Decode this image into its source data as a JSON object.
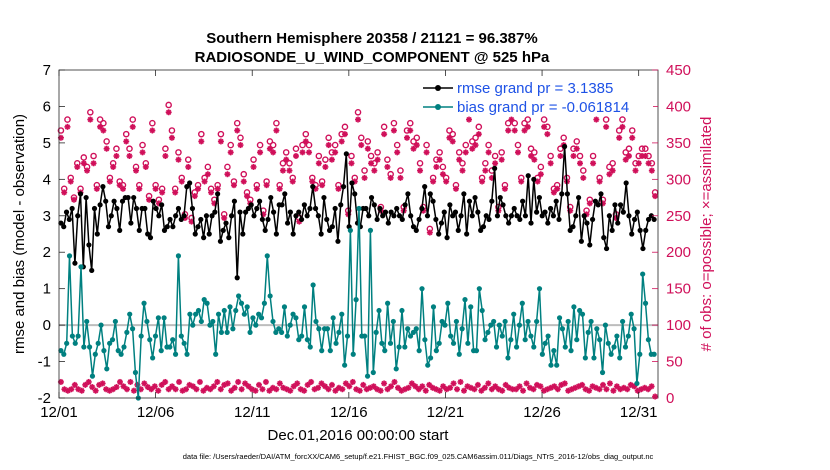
{
  "chart_data": {
    "type": "line",
    "title": "Southern Hemisphere 20358 / 21121 = 96.387%",
    "subtitle": "RADIOSONDE_U_WIND_COMPONENT @ 525 hPa",
    "xlabel": "Dec.01,2016 00:00:00 start",
    "ylabel_left": "rmse and bias (model - observation)",
    "ylabel_right": "# of obs: o=possible; ×=assimilated",
    "footnote": "data file: /Users/raeder/DAI/ATM_forcXX/CAM6_setup/f.e21.FHIST_BGC.f09_025.CAM6assim.011/Diags_NTrS_2016-12/obs_diag_output.nc",
    "x_ticks": [
      "12/01",
      "12/06",
      "12/11",
      "12/16",
      "12/21",
      "12/26",
      "12/31"
    ],
    "x_tick_days": [
      0,
      5,
      10,
      15,
      20,
      25,
      30
    ],
    "xlim": [
      0,
      31
    ],
    "y_left_ticks": [
      "-2",
      "-1",
      "0",
      "1",
      "2",
      "3",
      "4",
      "5",
      "6",
      "7"
    ],
    "ylim_left": [
      -2,
      7
    ],
    "y_right_ticks": [
      "0",
      "50",
      "100",
      "150",
      "200",
      "250",
      "300",
      "350",
      "400",
      "450"
    ],
    "ylim_right": [
      0,
      450
    ],
    "legend": {
      "location": "top-right",
      "rmse_label": "rmse grand pr = 3.1385",
      "bias_label": "bias grand pr = -0.061814"
    },
    "series": [
      {
        "name": "rmse",
        "color": "#000000",
        "axis": "left",
        "values": [
          2.8,
          2.7,
          3.1,
          2.9,
          3.2,
          1.7,
          3.0,
          3.6,
          1.6,
          3.5,
          2.2,
          1.5,
          3.2,
          2.5,
          3.3,
          3.8,
          3.4,
          2.7,
          3.0,
          3.4,
          3.2,
          2.6,
          3.4,
          3.5,
          3.5,
          2.8,
          3.5,
          3.2,
          2.6,
          3.2,
          3.2,
          2.5,
          2.4,
          3.4,
          3.2,
          3.0,
          3.3,
          2.6,
          2.7,
          2.9,
          2.7,
          3.0,
          3.2,
          2.9,
          3.0,
          3.8,
          3.9,
          3.2,
          2.5,
          2.7,
          2.9,
          2.4,
          3.0,
          2.5,
          3.0,
          3.1,
          3.6,
          2.3,
          2.6,
          2.8,
          2.4,
          3.0,
          3.4,
          1.3,
          3.1,
          2.5,
          3.1,
          3.2,
          3.3,
          3.0,
          3.2,
          3.4,
          2.9,
          2.6,
          2.9,
          3.5,
          3.1,
          2.5,
          3.3,
          3.3,
          3.6,
          2.8,
          3.1,
          2.5,
          3.0,
          3.1,
          2.9,
          3.3,
          3.0,
          3.2,
          3.8,
          3.2,
          3.0,
          2.5,
          3.5,
          2.9,
          2.6,
          2.7,
          3.2,
          2.3,
          3.3,
          3.8,
          4.7,
          2.7,
          3.9,
          3.6,
          2.8,
          2.7,
          3.2,
          3.2,
          3.0,
          3.5,
          3.3,
          2.9,
          3.2,
          3.0,
          3.1,
          2.8,
          3.1,
          3.0,
          3.2,
          3.0,
          2.9,
          3.3,
          3.6,
          3.0,
          2.7,
          2.6,
          2.9,
          3.2,
          3.8,
          3.0,
          3.6,
          3.4,
          2.9,
          2.5,
          2.8,
          3.1,
          2.4,
          3.3,
          3.0,
          3.1,
          2.6,
          3.0,
          3.6,
          2.5,
          3.4,
          3.0,
          3.5,
          3.1,
          2.6,
          2.7,
          3.0,
          2.9,
          3.4,
          4.3,
          3.0,
          3.5,
          3.3,
          3.0,
          2.8,
          3.0,
          3.2,
          3.0,
          2.9,
          3.4,
          3.0,
          4.1,
          2.8,
          4.0,
          3.1,
          3.5,
          3.0,
          3.1,
          2.8,
          3.2,
          3.0,
          3.4,
          2.9,
          3.6,
          4.9,
          3.6,
          2.6,
          2.7,
          3.0,
          3.5,
          2.3,
          3.0,
          2.8,
          2.2,
          2.9,
          3.4,
          3.3,
          3.6,
          2.4,
          2.1,
          3.0,
          2.6,
          3.3,
          2.8,
          3.3,
          3.1,
          3.9,
          3.0,
          2.5,
          2.9,
          3.1,
          2.6,
          2.1,
          2.6,
          2.9,
          3.0,
          2.9
        ]
      },
      {
        "name": "bias",
        "color": "#008080",
        "axis": "left",
        "values": [
          -0.7,
          -0.8,
          -0.5,
          1.9,
          -0.3,
          -0.5,
          -0.3,
          1.6,
          -0.6,
          0.1,
          -0.6,
          -1.4,
          -0.8,
          -0.5,
          0.0,
          -0.7,
          -1.2,
          -0.5,
          -0.4,
          0.1,
          -0.7,
          -0.8,
          -0.6,
          -0.2,
          0.3,
          -0.1,
          -1.3,
          -2.0,
          -0.3,
          0.6,
          0.1,
          -0.4,
          -0.9,
          -0.3,
          0.2,
          -0.7,
          0.2,
          -0.6,
          -0.6,
          -0.4,
          -0.8,
          1.9,
          -0.3,
          -0.5,
          -0.8,
          0.3,
          0.0,
          0.3,
          0.4,
          0.1,
          0.7,
          0.6,
          0.0,
          0.1,
          -0.8,
          0.3,
          -0.2,
          0.4,
          -0.2,
          0.5,
          -0.1,
          0.4,
          0.8,
          0.6,
          0.3,
          0.5,
          -0.2,
          0.2,
          0.0,
          0.3,
          0.2,
          0.6,
          1.9,
          0.8,
          0.1,
          -0.2,
          -0.1,
          -0.2,
          0.5,
          -0.3,
          0.0,
          0.3,
          0.2,
          -0.4,
          -0.3,
          0.5,
          -0.4,
          -0.6,
          1.1,
          0.1,
          -0.1,
          -0.7,
          -0.1,
          -0.1,
          -0.7,
          0.2,
          -0.5,
          -0.2,
          0.3,
          -1.1,
          -0.3,
          2.6,
          -0.8,
          0.7,
          3.2,
          -0.3,
          -0.3,
          -1.4,
          2.6,
          -1.3,
          -0.2,
          0.4,
          -0.5,
          -0.7,
          0.6,
          -0.5,
          0.1,
          -1.2,
          -0.6,
          0.4,
          -0.6,
          -0.1,
          -0.3,
          -0.2,
          -0.1,
          -0.7,
          1.0,
          -0.4,
          -1.1,
          -0.9,
          0.5,
          -0.7,
          -0.5,
          0.1,
          0.0,
          0.6,
          -0.3,
          -0.5,
          0.1,
          -0.8,
          -0.1,
          0.7,
          -0.5,
          0.5,
          -0.7,
          -0.7,
          1.0,
          0.4,
          -0.4,
          -0.2,
          0.0,
          0.1,
          -0.6,
          0.0,
          -0.3,
          0.1,
          -0.9,
          -0.4,
          0.3,
          -0.6,
          0.0,
          0.6,
          -0.4,
          0.1,
          -0.3,
          -0.6,
          0.1,
          1.0,
          -0.8,
          -0.5,
          -0.3,
          -1.1,
          -0.7,
          -1.1,
          0.2,
          -0.1,
          -0.6,
          0.1,
          -0.7,
          0.5,
          -0.4,
          0.4,
          0.3,
          -0.9,
          -0.2,
          0.1,
          -0.9,
          -0.1,
          -0.4,
          -1.3,
          0.0,
          -0.5,
          -0.8,
          -0.6,
          -0.3,
          -0.9,
          0.1,
          -0.6,
          -0.3,
          0.3,
          -0.1,
          -1.6,
          -0.8,
          1.4,
          0.6,
          -0.4,
          -0.8,
          -0.8
        ]
      },
      {
        "name": "obs possible",
        "color": "#d0105a",
        "axis": "right",
        "marker": "o",
        "values": [
          367,
          287,
          382,
          302,
          275,
          322,
          287,
          330,
          317,
          392,
          332,
          292,
          382,
          377,
          352,
          302,
          322,
          342,
          297,
          292,
          362,
          342,
          382,
          317,
          292,
          347,
          322,
          277,
          377,
          292,
          272,
          287,
          342,
          402,
          367,
          287,
          337,
          302,
          252,
          327,
          247,
          282,
          292,
          362,
          302,
          317,
          287,
          272,
          292,
          362,
          252,
          317,
          347,
          297,
          377,
          357,
          307,
          282,
          272,
          327,
          292,
          347,
          257,
          297,
          352,
          347,
          377,
          292,
          322,
          337,
          322,
          302,
          342,
          247,
          347,
          362,
          347,
          302,
          292,
          332,
          297,
          327,
          357,
          337,
          347,
          292,
          362,
          372,
          257,
          332,
          302,
          392,
          357,
          312,
          352,
          332,
          322,
          337,
          262,
          372,
          327,
          307,
          377,
          347,
          312,
          262,
          367,
          377,
          352,
          357,
          322,
          262,
          347,
          232,
          302,
          327,
          337,
          317,
          302,
          367,
          362,
          292,
          337,
          322,
          347,
          392,
          352,
          357,
          372,
          302,
          322,
          347,
          312,
          332,
          262,
          337,
          292,
          377,
          392,
          377,
          347,
          302,
          377,
          382,
          342,
          337,
          302,
          317,
          382,
          372,
          332,
          287,
          292,
          342,
          357,
          302,
          262,
          342,
          352,
          332,
          312,
          257,
          272,
          332,
          392,
          302,
          272,
          382,
          317,
          322,
          252,
          367,
          382,
          337,
          342,
          367,
          322,
          332,
          342,
          342,
          332,
          322,
          282
        ]
      },
      {
        "name": "obs assimilated",
        "color": "#d0105a",
        "axis": "right",
        "marker": "x",
        "values": [
          357,
          282,
          372,
          297,
          272,
          317,
          282,
          322,
          312,
          382,
          322,
          287,
          372,
          367,
          342,
          297,
          317,
          332,
          292,
          287,
          352,
          332,
          372,
          312,
          287,
          337,
          317,
          272,
          367,
          287,
          267,
          282,
          332,
          392,
          357,
          282,
          327,
          297,
          247,
          317,
          242,
          277,
          287,
          352,
          297,
          307,
          282,
          267,
          287,
          352,
          247,
          307,
          337,
          292,
          367,
          347,
          297,
          277,
          267,
          317,
          287,
          337,
          252,
          292,
          342,
          337,
          367,
          287,
          312,
          327,
          312,
          297,
          332,
          242,
          337,
          352,
          337,
          297,
          287,
          322,
          292,
          317,
          347,
          327,
          337,
          287,
          352,
          362,
          252,
          322,
          297,
          382,
          347,
          302,
          342,
          322,
          312,
          327,
          257,
          362,
          317,
          302,
          367,
          337,
          302,
          257,
          357,
          367,
          342,
          347,
          312,
          257,
          337,
          227,
          297,
          317,
          327,
          307,
          297,
          357,
          352,
          287,
          327,
          312,
          337,
          382,
          342,
          347,
          362,
          297,
          312,
          337,
          302,
          322,
          257,
          327,
          287,
          367,
          382,
          367,
          337,
          297,
          367,
          372,
          332,
          327,
          297,
          307,
          372,
          362,
          322,
          282,
          287,
          332,
          347,
          297,
          257,
          332,
          342,
          322,
          302,
          252,
          267,
          322,
          382,
          297,
          267,
          372,
          307,
          312,
          247,
          357,
          372,
          327,
          332,
          357,
          312,
          322,
          332,
          332,
          322,
          312,
          277
        ]
      },
      {
        "name": "obs low assimilated",
        "color": "#d0105a",
        "axis": "right",
        "marker": "x",
        "values": [
          22,
          12,
          10,
          12,
          18,
          12,
          10,
          18,
          22,
          15,
          10,
          18,
          20,
          12,
          10,
          12,
          15,
          22,
          16,
          12,
          22,
          10,
          18,
          12,
          20,
          15,
          12,
          16,
          10,
          18,
          22,
          12,
          16,
          12,
          22,
          10,
          12,
          18,
          16,
          12,
          22,
          10,
          14,
          12,
          16,
          22,
          12,
          18,
          20,
          10,
          14,
          22,
          12,
          20,
          16,
          12,
          10,
          18,
          12,
          22,
          10,
          14,
          12,
          20,
          14,
          12,
          10,
          16,
          20,
          12,
          10,
          18,
          22,
          12,
          14,
          20,
          16,
          12,
          18,
          10,
          14,
          12,
          20,
          16,
          22,
          12,
          10,
          18,
          12,
          14,
          16,
          12,
          10,
          20,
          12,
          16,
          22,
          14,
          10,
          12,
          14,
          20,
          16,
          12,
          16,
          10,
          18,
          14,
          12,
          10,
          16,
          12,
          14,
          20,
          12,
          22,
          10,
          16,
          14,
          12,
          18,
          10,
          14,
          20,
          12,
          16,
          12,
          10,
          18,
          14,
          12,
          12,
          16,
          10,
          20,
          14,
          12,
          18,
          16,
          10,
          12,
          14,
          16,
          12,
          18,
          20,
          10,
          12,
          14,
          16,
          18,
          12,
          10,
          16,
          14,
          12,
          18,
          12,
          20,
          10,
          16,
          12,
          14,
          12,
          18,
          16,
          10,
          12,
          14,
          12,
          16,
          2
        ]
      }
    ]
  }
}
